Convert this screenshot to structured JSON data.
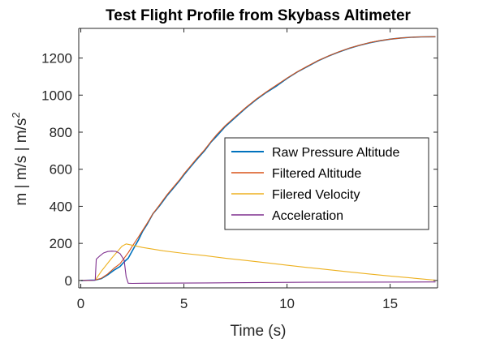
{
  "chart_data": {
    "type": "line",
    "title": "Test Flight Profile from Skybass Altimeter",
    "xlabel": "Time (s)",
    "ylabel_main": "m | m/s | m/s",
    "ylabel_superscript": "2",
    "xlim": [
      -0.1,
      17.3
    ],
    "ylim": [
      -40,
      1360
    ],
    "xticks": [
      0,
      5,
      10,
      15
    ],
    "yticks": [
      0,
      200,
      400,
      600,
      800,
      1000,
      1200
    ],
    "xtick_labels": [
      "0",
      "5",
      "10",
      "15"
    ],
    "ytick_labels": [
      "0",
      "200",
      "400",
      "600",
      "800",
      "1000",
      "1200"
    ],
    "grid": false,
    "legend_position": "center-right",
    "series": [
      {
        "name": "Raw Pressure Altitude",
        "color": "#0072BD",
        "width": 1.6,
        "x": [
          0,
          0.7,
          1.0,
          1.3,
          1.6,
          1.9,
          2.1,
          2.3,
          2.5,
          2.8,
          3.0,
          3.2,
          3.5,
          3.8,
          4.0,
          4.2,
          4.5,
          4.8,
          5.0,
          5.3,
          5.6,
          6.0,
          6.3,
          6.6,
          7.0,
          7.5,
          8.0,
          8.5,
          9.0,
          9.5,
          10.0,
          10.5,
          11.0,
          11.5,
          12.0,
          12.5,
          13.0,
          13.5,
          14.0,
          14.5,
          15.0,
          15.5,
          16.0,
          16.5,
          17.2
        ],
        "y": [
          0,
          2,
          10,
          30,
          55,
          75,
          100,
          120,
          160,
          220,
          265,
          300,
          360,
          400,
          430,
          460,
          500,
          540,
          570,
          610,
          650,
          700,
          745,
          780,
          830,
          880,
          930,
          975,
          1015,
          1050,
          1090,
          1125,
          1155,
          1185,
          1210,
          1232,
          1252,
          1268,
          1282,
          1293,
          1302,
          1308,
          1312,
          1314,
          1315
        ]
      },
      {
        "name": "Filtered Altitude",
        "color": "#D95319",
        "width": 1.1,
        "x": [
          0,
          0.7,
          1.0,
          1.3,
          1.6,
          1.9,
          2.1,
          2.3,
          2.5,
          2.8,
          3.0,
          3.2,
          3.5,
          3.8,
          4.0,
          4.2,
          4.5,
          4.8,
          5.0,
          5.3,
          5.6,
          6.0,
          6.3,
          6.6,
          7.0,
          7.5,
          8.0,
          8.5,
          9.0,
          9.5,
          10.0,
          10.5,
          11.0,
          11.5,
          12.0,
          12.5,
          13.0,
          13.5,
          14.0,
          14.5,
          15.0,
          15.5,
          16.0,
          16.5,
          17.2
        ],
        "y": [
          0,
          2,
          12,
          35,
          65,
          90,
          120,
          150,
          185,
          235,
          270,
          305,
          360,
          405,
          435,
          465,
          505,
          545,
          575,
          615,
          655,
          705,
          748,
          788,
          835,
          885,
          933,
          978,
          1018,
          1055,
          1092,
          1126,
          1157,
          1186,
          1211,
          1233,
          1253,
          1269,
          1283,
          1294,
          1302,
          1308,
          1312,
          1314,
          1315
        ]
      },
      {
        "name": "Filered Velocity",
        "color": "#EDB120",
        "width": 1.1,
        "x": [
          0,
          0.7,
          1.0,
          1.5,
          2.0,
          2.2,
          2.5,
          3.0,
          4.0,
          5.0,
          6.0,
          7.0,
          8.0,
          9.0,
          10.0,
          11.0,
          12.0,
          13.0,
          14.0,
          15.0,
          16.0,
          17.2
        ],
        "y": [
          0,
          2,
          50,
          120,
          185,
          197,
          190,
          178,
          160,
          146,
          134,
          120,
          108,
          95,
          82,
          70,
          58,
          46,
          35,
          24,
          14,
          1
        ]
      },
      {
        "name": "Acceleration",
        "color": "#7E2F8E",
        "width": 1.1,
        "x": [
          0,
          0.7,
          0.75,
          0.9,
          1.1,
          1.3,
          1.5,
          1.7,
          1.9,
          2.1,
          2.2,
          2.3,
          2.5,
          3.0,
          5.0,
          8.0,
          11.0,
          14.0,
          17.2
        ],
        "y": [
          0,
          2,
          115,
          130,
          148,
          156,
          158,
          157,
          145,
          110,
          20,
          -15,
          -16,
          -15,
          -14,
          -12,
          -10,
          -9,
          -8
        ]
      }
    ]
  }
}
